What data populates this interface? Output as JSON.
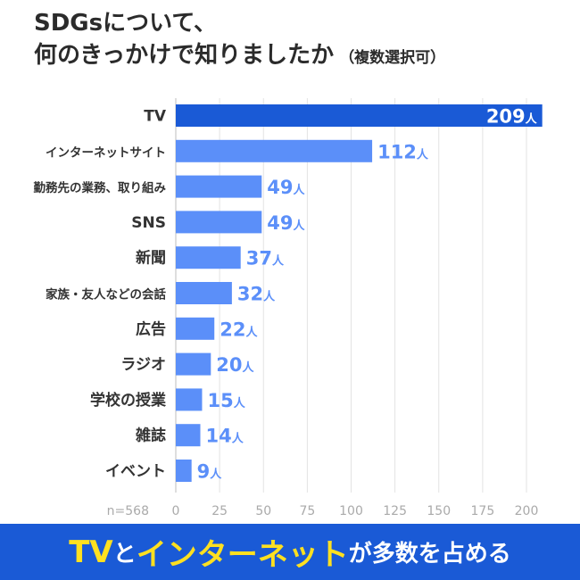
{
  "title": {
    "line1": "SDGsについて、",
    "line2": "何のきっかけで知りましたか",
    "sub": "（複数選択可）"
  },
  "colors": {
    "bar": "#5b8ff9",
    "bar_highlight": "#1a5ad6",
    "banner_bg": "#1a5ad6",
    "banner_highlight": "#ffe020"
  },
  "chart_data": {
    "type": "bar",
    "orientation": "horizontal",
    "categories": [
      "TV",
      "インターネットサイト",
      "勤務先の業務、取り組み",
      "SNS",
      "新聞",
      "家族・友人などの会話",
      "広告",
      "ラジオ",
      "学校の授業",
      "雑誌",
      "イベント"
    ],
    "values": [
      209,
      112,
      49,
      49,
      37,
      32,
      22,
      20,
      15,
      14,
      9
    ],
    "value_unit": "人",
    "xlim": [
      0,
      220
    ],
    "xticks": [
      0,
      25,
      50,
      75,
      100,
      125,
      150,
      175,
      200
    ],
    "grid": true,
    "sample_note": "n=568",
    "highlight_category": "TV"
  },
  "banner": {
    "part1": "TV",
    "part2": "と",
    "part3": "インターネット",
    "part4": "が多数を占める"
  }
}
